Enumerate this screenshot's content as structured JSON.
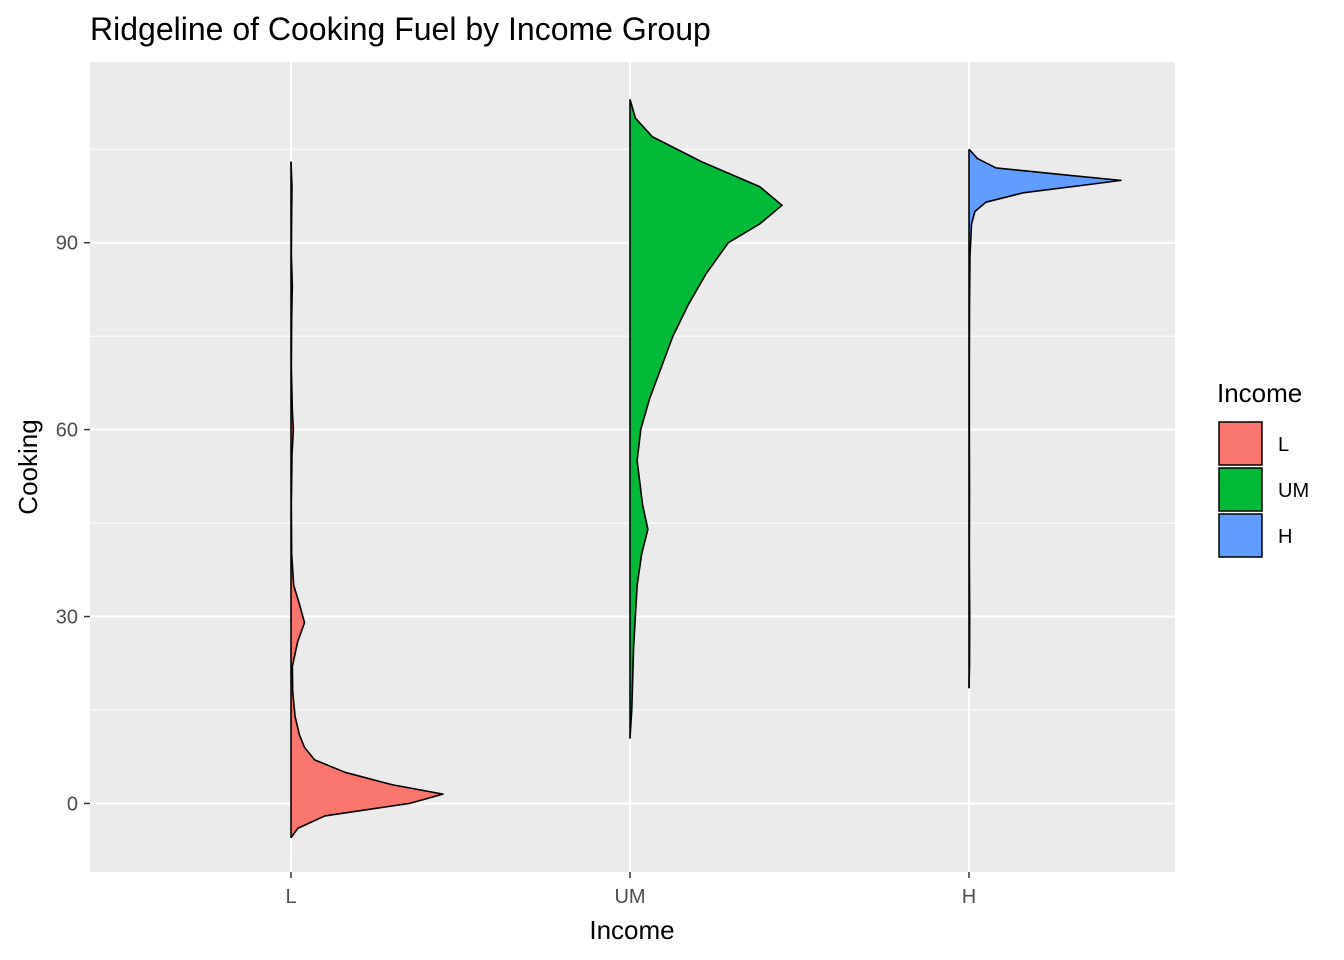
{
  "chart_data": {
    "type": "ridgeline",
    "title": "Ridgeline of Cooking Fuel by Income Group",
    "xlabel": "Income",
    "ylabel": "Cooking",
    "categories": [
      "L",
      "UM",
      "H"
    ],
    "ylim": [
      -11,
      119
    ],
    "yticks": [
      0,
      30,
      60,
      90
    ],
    "orientation": "vertical-density-per-category",
    "grid": true,
    "legend": {
      "title": "Income",
      "position": "right"
    },
    "series": [
      {
        "name": "L",
        "color": "#F8766D",
        "range": [
          -5.5,
          103
        ],
        "profile": [
          [
            -5.5,
            0.0
          ],
          [
            -4,
            0.02
          ],
          [
            -2,
            0.1
          ],
          [
            0,
            0.35
          ],
          [
            1.5,
            0.45
          ],
          [
            3,
            0.3
          ],
          [
            5,
            0.16
          ],
          [
            7,
            0.07
          ],
          [
            9,
            0.04
          ],
          [
            11,
            0.025
          ],
          [
            14,
            0.012
          ],
          [
            18,
            0.005
          ],
          [
            22,
            0.004
          ],
          [
            26,
            0.02
          ],
          [
            29,
            0.04
          ],
          [
            32,
            0.025
          ],
          [
            35,
            0.008
          ],
          [
            40,
            0.002
          ],
          [
            48,
            0.001
          ],
          [
            56,
            0.003
          ],
          [
            60,
            0.007
          ],
          [
            63,
            0.004
          ],
          [
            70,
            0.001
          ],
          [
            78,
            0.002
          ],
          [
            83,
            0.004
          ],
          [
            88,
            0.001
          ],
          [
            95,
            0.002
          ],
          [
            99,
            0.003
          ],
          [
            103,
            0.0
          ]
        ]
      },
      {
        "name": "UM",
        "color": "#00BA38",
        "range": [
          10.5,
          113
        ],
        "profile": [
          [
            10.5,
            0.0
          ],
          [
            15,
            0.002
          ],
          [
            25,
            0.004
          ],
          [
            35,
            0.008
          ],
          [
            40,
            0.013
          ],
          [
            44,
            0.02
          ],
          [
            48,
            0.014
          ],
          [
            55,
            0.008
          ],
          [
            60,
            0.012
          ],
          [
            65,
            0.022
          ],
          [
            70,
            0.035
          ],
          [
            75,
            0.048
          ],
          [
            80,
            0.065
          ],
          [
            85,
            0.085
          ],
          [
            90,
            0.11
          ],
          [
            93,
            0.145
          ],
          [
            96,
            0.17
          ],
          [
            99,
            0.145
          ],
          [
            103,
            0.08
          ],
          [
            107,
            0.025
          ],
          [
            110,
            0.006
          ],
          [
            113,
            0.0
          ]
        ]
      },
      {
        "name": "H",
        "color": "#619CFF",
        "range": [
          18.5,
          105
        ],
        "profile": [
          [
            18.5,
            0.0
          ],
          [
            22,
            0.003
          ],
          [
            30,
            0.004
          ],
          [
            40,
            0.002
          ],
          [
            50,
            0.003
          ],
          [
            60,
            0.002
          ],
          [
            70,
            0.002
          ],
          [
            80,
            0.003
          ],
          [
            88,
            0.006
          ],
          [
            93,
            0.015
          ],
          [
            95,
            0.035
          ],
          [
            96.5,
            0.1
          ],
          [
            98,
            0.32
          ],
          [
            99.3,
            0.7
          ],
          [
            100,
            0.9
          ],
          [
            100.8,
            0.6
          ],
          [
            102,
            0.16
          ],
          [
            103.5,
            0.05
          ],
          [
            105,
            0.0
          ]
        ]
      }
    ]
  }
}
